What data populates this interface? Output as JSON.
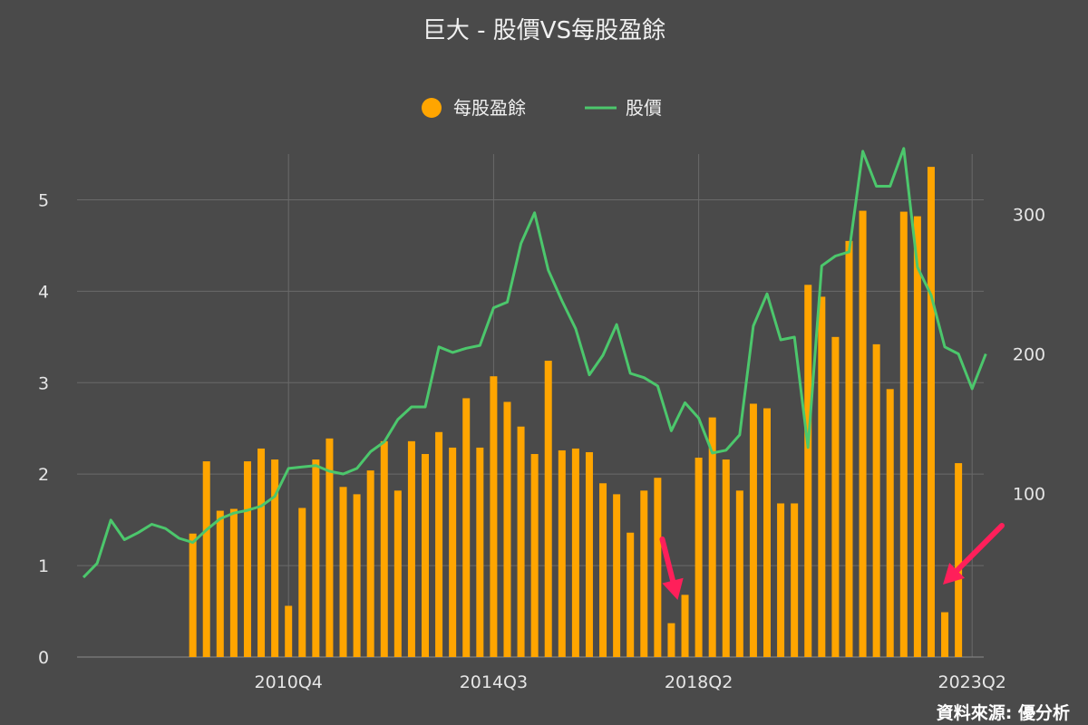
{
  "chart_data": {
    "type": "bar+line",
    "title": "巨大 - 股價VS每股盈餘",
    "source": "資料來源: 優分析",
    "legend_position": "top-center",
    "grid": true,
    "colors": {
      "eps": "#FFA500",
      "price": "#4CC76C",
      "background": "#4a4a4a"
    },
    "x_ticks": [
      {
        "label": "2010Q4",
        "index": 15
      },
      {
        "label": "2014Q3",
        "index": 30
      },
      {
        "label": "2018Q2",
        "index": 45
      },
      {
        "label": "2023Q2",
        "index": 65
      }
    ],
    "y_left": {
      "ticks": [
        0,
        1,
        2,
        3,
        4,
        5
      ],
      "range": [
        0,
        5.5
      ]
    },
    "y_right": {
      "ticks": [
        100,
        200,
        300
      ],
      "range": [
        -17,
        343
      ]
    },
    "series": [
      {
        "name": "每股盈餘",
        "kind": "bar",
        "axis": "left",
        "values": [
          null,
          null,
          null,
          null,
          null,
          null,
          null,
          null,
          1.35,
          2.14,
          1.6,
          1.62,
          2.14,
          2.28,
          2.16,
          0.56,
          1.63,
          2.16,
          2.39,
          1.86,
          1.78,
          2.04,
          2.36,
          1.82,
          2.36,
          2.22,
          2.46,
          2.29,
          2.83,
          2.29,
          3.07,
          2.79,
          2.52,
          2.22,
          3.24,
          2.26,
          2.28,
          2.24,
          1.9,
          1.78,
          1.36,
          1.82,
          1.96,
          0.37,
          0.68,
          2.18,
          2.62,
          2.16,
          1.82,
          2.77,
          2.72,
          1.68,
          1.68,
          4.07,
          3.94,
          3.5,
          4.55,
          4.88,
          3.42,
          2.93,
          4.87,
          4.82,
          5.36,
          0.49,
          2.12
        ]
      },
      {
        "name": "股價",
        "kind": "line",
        "axis": "right",
        "values": [
          40,
          50,
          81,
          67,
          72,
          78,
          75,
          68,
          65,
          74,
          82,
          86,
          88,
          91,
          98,
          118,
          119,
          120,
          116,
          114,
          118,
          130,
          137,
          153,
          162,
          162,
          205,
          201,
          204,
          206,
          233,
          237,
          279,
          301,
          260,
          238,
          218,
          185,
          199,
          221,
          186,
          183,
          177,
          145,
          165,
          154,
          129,
          131,
          142,
          220,
          243,
          210,
          212,
          133,
          263,
          270,
          273,
          345,
          320,
          320,
          347,
          262,
          242,
          205,
          200,
          175,
          200
        ]
      }
    ],
    "annotations": [
      {
        "type": "arrow",
        "color": "#FF1F5A",
        "target_index": 43
      },
      {
        "type": "arrow",
        "color": "#FF1F5A",
        "target_index": 63
      }
    ]
  }
}
